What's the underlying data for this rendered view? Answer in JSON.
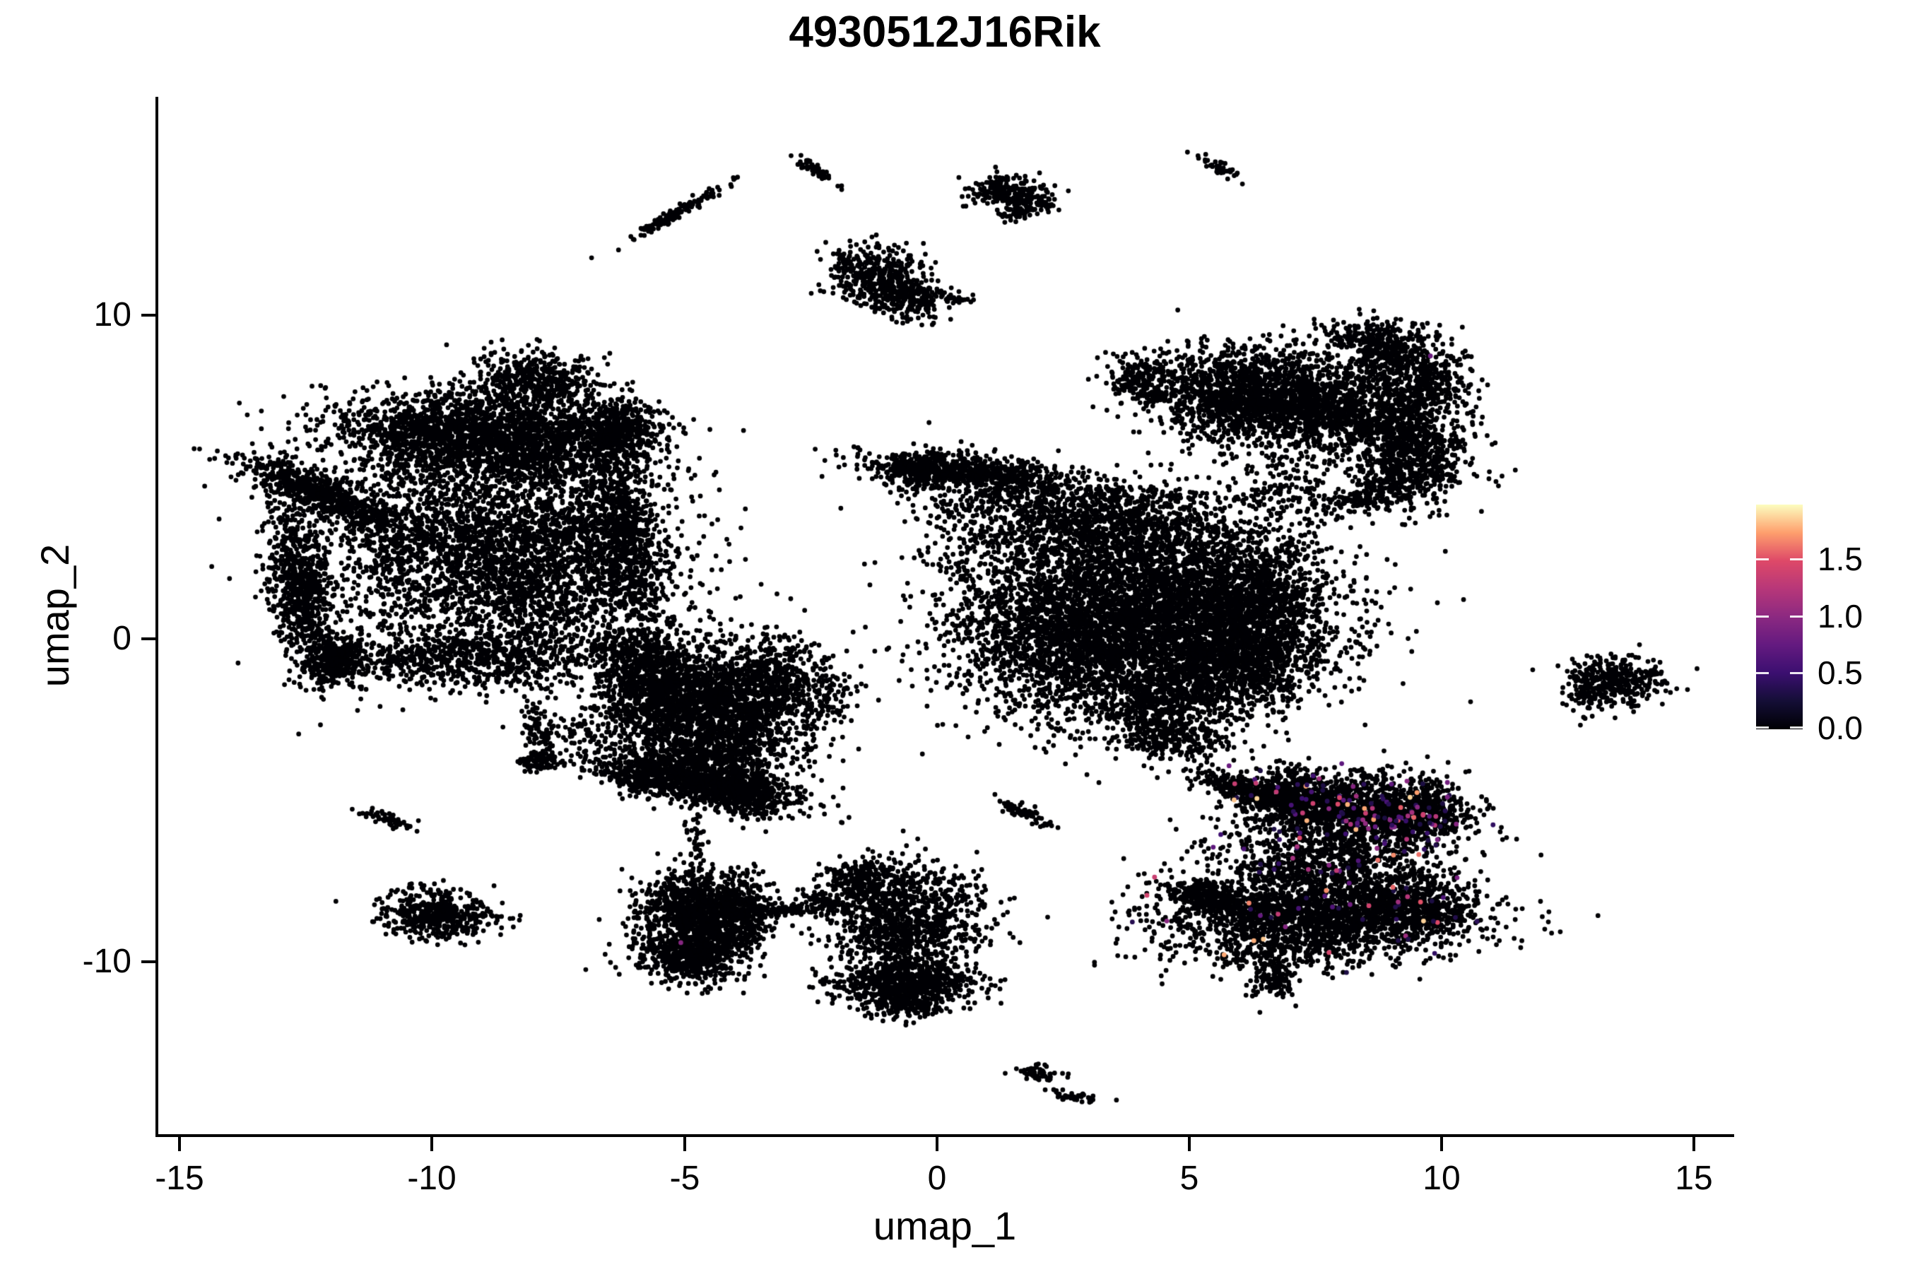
{
  "title": "4930512J16Rik",
  "axes": {
    "x": {
      "label": "umap_1",
      "tick_labels": [
        "-15",
        "-10",
        "-5",
        "0",
        "5",
        "10",
        "15"
      ],
      "tick_values": [
        -15,
        -10,
        -5,
        0,
        5,
        10,
        15
      ]
    },
    "y": {
      "label": "umap_2",
      "tick_labels": [
        "10",
        "0",
        "-10"
      ],
      "tick_values": [
        10,
        0,
        -10
      ]
    }
  },
  "legend": {
    "tick_labels": [
      "1.5",
      "1.0",
      "0.5",
      "0.0"
    ],
    "tick_values": [
      1.5,
      1.0,
      0.5,
      0.0
    ],
    "min_value": 0.0,
    "max_value": 1.98,
    "colormap_name": "magma",
    "colormap_stops": [
      "#000004",
      "#140e36",
      "#3b0f70",
      "#641a80",
      "#8c2981",
      "#b73779",
      "#de4968",
      "#fe9f6d",
      "#fcfdbf"
    ]
  },
  "chart_data": {
    "type": "scatter",
    "title": "4930512J16Rik",
    "xlabel": "umap_1",
    "ylabel": "umap_2",
    "x_domain": [
      -15.45,
      15.77
    ],
    "y_domain": [
      -15.32,
      16.74
    ],
    "x_tick_values": [
      -15,
      -10,
      -5,
      0,
      5,
      10,
      15
    ],
    "y_tick_values": [
      10,
      0,
      -10
    ],
    "grid": false,
    "legend_position": "right",
    "point_radius_px": 3.4,
    "zero_expression_color": "#000004",
    "seed": 42,
    "cluster_fields": [
      "name",
      "center_x",
      "center_y",
      "sd_x",
      "sd_y",
      "rot_deg",
      "n_points",
      "colored_fraction"
    ],
    "clusters": [
      [
        "left-top-band",
        -9.0,
        6.2,
        1.5,
        0.65,
        -8,
        2200,
        0
      ],
      [
        "left-top-right",
        -6.4,
        6.5,
        0.5,
        0.5,
        0,
        450,
        0
      ],
      [
        "left-top-knob",
        -8.0,
        7.9,
        0.6,
        0.5,
        0,
        500,
        0
      ],
      [
        "left-rim-diag",
        -12.1,
        4.4,
        1.0,
        0.3,
        -35,
        700,
        0
      ],
      [
        "left-rim-vert",
        -12.6,
        1.5,
        0.3,
        1.3,
        5,
        700,
        0
      ],
      [
        "left-corner-knob",
        -11.9,
        -0.7,
        0.32,
        0.35,
        0,
        300,
        0
      ],
      [
        "left-interior",
        -9.2,
        2.8,
        1.6,
        1.6,
        0,
        2400,
        0
      ],
      [
        "left-interior-right",
        -7.3,
        2.3,
        1.2,
        1.7,
        0,
        1300,
        0
      ],
      [
        "left-right-edge",
        -6.2,
        3.3,
        0.3,
        1.5,
        6,
        600,
        0
      ],
      [
        "left-bottom-edge",
        -9.3,
        -0.6,
        1.5,
        0.45,
        2,
        700,
        0
      ],
      [
        "left-mid-bridge",
        -5.9,
        -0.6,
        0.5,
        0.7,
        -20,
        300,
        0
      ],
      [
        "left-tail-strand",
        -7.85,
        -2.9,
        0.18,
        0.5,
        10,
        90,
        0
      ],
      [
        "left-tail-blob",
        -7.9,
        -3.8,
        0.22,
        0.18,
        0,
        80,
        0
      ],
      [
        "left-tail-scatter",
        -7.0,
        -3.0,
        0.4,
        0.4,
        0,
        60,
        0
      ],
      [
        "mid-core",
        -4.5,
        -1.9,
        0.95,
        0.85,
        -10,
        1600,
        0
      ],
      [
        "mid-left-edge",
        -5.7,
        -1.6,
        0.4,
        0.8,
        0,
        420,
        0
      ],
      [
        "mid-right",
        -3.3,
        -1.3,
        0.6,
        0.7,
        0,
        450,
        0
      ],
      [
        "mid-bottom",
        -4.3,
        -3.3,
        0.9,
        0.45,
        0,
        420,
        0
      ],
      [
        "mid-right-dots",
        -2.2,
        -1.8,
        0.35,
        0.6,
        0,
        70,
        0
      ],
      [
        "hook-arc",
        -4.6,
        -4.5,
        1.05,
        0.3,
        -18,
        850,
        0
      ],
      [
        "hook-knob",
        -3.75,
        -4.7,
        0.32,
        0.38,
        0,
        280,
        0
      ],
      [
        "hook-fill",
        -5.0,
        -3.9,
        0.75,
        0.45,
        0,
        320,
        0
      ],
      [
        "hook-left-tip",
        -5.8,
        -4.2,
        0.3,
        0.35,
        0,
        150,
        0
      ],
      [
        "strand-arc-topleft",
        -5.2,
        13.1,
        0.65,
        0.07,
        42,
        130,
        0
      ],
      [
        "dash-top-mid",
        -2.37,
        14.45,
        0.3,
        0.07,
        -45,
        45,
        0
      ],
      [
        "ring-blob-a",
        1.2,
        13.85,
        0.28,
        0.3,
        0,
        140,
        0
      ],
      [
        "ring-blob-b",
        1.8,
        13.6,
        0.28,
        0.25,
        0,
        130,
        0
      ],
      [
        "ring-blob-c",
        1.5,
        13.15,
        0.15,
        0.1,
        0,
        30,
        0
      ],
      [
        "dash-top-right",
        5.55,
        14.6,
        0.3,
        0.08,
        -40,
        40,
        0
      ],
      [
        "dash-mid-small",
        0.35,
        10.5,
        0.2,
        0.07,
        -10,
        25,
        0
      ],
      [
        "topmid-blob",
        -1.2,
        11.2,
        0.5,
        0.45,
        -35,
        420,
        0
      ],
      [
        "topmid-ext",
        -0.6,
        10.45,
        0.4,
        0.28,
        -30,
        170,
        0
      ],
      [
        "topmid-dash",
        -0.35,
        10.75,
        0.28,
        0.08,
        0,
        50,
        0
      ],
      [
        "pair-blob-a",
        4.05,
        8.0,
        0.3,
        0.28,
        0,
        160,
        0
      ],
      [
        "pair-blob-b",
        4.35,
        7.5,
        0.18,
        0.12,
        0,
        40,
        0
      ],
      [
        "wing",
        0.5,
        5.2,
        1.0,
        0.27,
        -8,
        600,
        0
      ],
      [
        "wing-tip",
        -0.4,
        5.15,
        0.28,
        0.28,
        0,
        150,
        0
      ],
      [
        "right-band",
        3.1,
        3.6,
        1.5,
        0.6,
        -14,
        1100,
        0
      ],
      [
        "dotted-strand-a",
        1.6,
        5.0,
        0.6,
        0.1,
        0,
        60,
        0
      ],
      [
        "dotted-trail",
        3.5,
        4.5,
        1.7,
        0.12,
        -4,
        130,
        0
      ],
      [
        "right-upperleft-sparse",
        0.9,
        3.2,
        0.6,
        0.9,
        0,
        170,
        0
      ],
      [
        "main-core",
        4.3,
        0.8,
        1.75,
        1.5,
        12,
        4800,
        0
      ],
      [
        "main-bottom-rim",
        5.3,
        -1.3,
        1.3,
        0.65,
        25,
        1300,
        0
      ],
      [
        "main-left",
        2.2,
        0.3,
        0.95,
        1.35,
        0,
        900,
        0
      ],
      [
        "main-right-bulge",
        6.2,
        0.8,
        0.65,
        1.1,
        -10,
        700,
        0
      ],
      [
        "main-bottom-tail",
        4.7,
        -3.1,
        0.55,
        0.35,
        -15,
        260,
        0
      ],
      [
        "right-top-sparse",
        7.0,
        4.6,
        0.8,
        0.6,
        0,
        170,
        0
      ],
      [
        "topright-band",
        7.0,
        7.4,
        1.3,
        0.7,
        -16,
        2200,
        0
      ],
      [
        "topright-left-tip",
        5.5,
        7.1,
        0.5,
        0.6,
        0,
        260,
        0
      ],
      [
        "topright-knob",
        8.8,
        9.0,
        0.62,
        0.42,
        -12,
        430,
        0
      ],
      [
        "topright-upper-right",
        9.6,
        7.9,
        0.5,
        0.5,
        0,
        320,
        0
      ],
      [
        "topright-bridge",
        8.9,
        6.5,
        0.5,
        0.4,
        0,
        200,
        0
      ],
      [
        "topright-lower-lobe",
        9.5,
        5.6,
        0.6,
        0.75,
        8,
        620,
        0
      ],
      [
        "topright-arm",
        8.75,
        4.5,
        0.55,
        0.22,
        35,
        190,
        0
      ],
      [
        "far-right-blob",
        13.45,
        -1.25,
        0.5,
        0.33,
        -10,
        320,
        0
      ],
      [
        "far-right-tail",
        12.95,
        -1.8,
        0.2,
        0.3,
        0,
        70,
        0
      ],
      [
        "botright-arm",
        6.05,
        -4.65,
        0.5,
        0.16,
        -28,
        240,
        0
      ],
      [
        "botright-upper-left",
        6.9,
        -4.9,
        0.4,
        0.35,
        0,
        300,
        0.03
      ],
      [
        "botright-upper-lobe",
        8.3,
        -5.3,
        1.1,
        0.55,
        -8,
        1400,
        0.055
      ],
      [
        "botright-curl",
        9.7,
        -5.3,
        0.35,
        0.5,
        0,
        280,
        0.1
      ],
      [
        "botright-midfill",
        7.7,
        -6.85,
        1.2,
        0.6,
        0,
        750,
        0.04
      ],
      [
        "botright-lower-lobe",
        7.5,
        -8.6,
        1.5,
        0.65,
        3,
        1900,
        0.015
      ],
      [
        "botright-lower-right",
        9.6,
        -8.3,
        0.6,
        0.55,
        0,
        450,
        0.03
      ],
      [
        "botright-left-tip",
        5.3,
        -7.95,
        0.55,
        0.22,
        -22,
        260,
        0
      ],
      [
        "botright-bottom-tip",
        6.65,
        -10.4,
        0.22,
        0.33,
        0,
        130,
        0
      ],
      [
        "botright-below-scatter",
        6.9,
        -9.7,
        0.8,
        0.35,
        0,
        140,
        0.01
      ],
      [
        "botmid-upper",
        -0.75,
        -8.1,
        0.8,
        0.6,
        0,
        600,
        0
      ],
      [
        "botmid-mid",
        -0.6,
        -9.2,
        0.75,
        0.45,
        0,
        450,
        0
      ],
      [
        "botmid-dense-band",
        -0.6,
        -10.6,
        0.7,
        0.4,
        0,
        800,
        0
      ],
      [
        "botmid-bottom",
        -0.5,
        -11.3,
        0.35,
        0.2,
        0,
        120,
        0
      ],
      [
        "botmid-knob",
        -1.5,
        -7.4,
        0.3,
        0.25,
        0,
        150,
        0
      ],
      [
        "botleft-strand",
        -4.78,
        -6.6,
        0.1,
        0.75,
        0,
        55,
        0
      ],
      [
        "botleft-upper",
        -4.75,
        -8.2,
        0.6,
        0.5,
        0,
        650,
        0
      ],
      [
        "botleft-lower",
        -4.85,
        -9.7,
        0.55,
        0.5,
        0,
        700,
        0
      ],
      [
        "botleft-mid",
        -4.25,
        -8.8,
        0.5,
        0.45,
        0,
        400,
        0
      ],
      [
        "botleft-right-scatter",
        -3.8,
        -8.2,
        0.4,
        0.45,
        0,
        140,
        0
      ],
      [
        "botleft-hstrand",
        -3.15,
        -8.4,
        0.55,
        0.07,
        0,
        110,
        0
      ],
      [
        "botleft-diag-dash",
        -2.2,
        -8.15,
        0.3,
        0.1,
        -28,
        70,
        0
      ],
      [
        "small-botleft",
        -9.95,
        -8.55,
        0.55,
        0.35,
        -10,
        430,
        0
      ],
      [
        "small-botleft-tail",
        -8.9,
        -8.55,
        0.3,
        0.06,
        0,
        20,
        0
      ],
      [
        "small-botleft-topdots",
        -10.1,
        -7.9,
        0.25,
        0.2,
        0,
        25,
        0
      ],
      [
        "tiny-dash-left",
        -10.85,
        -5.6,
        0.3,
        0.1,
        -25,
        55,
        0
      ],
      [
        "tiny-blob-bottom",
        2.05,
        -13.4,
        0.22,
        0.16,
        0,
        55,
        0
      ],
      [
        "tiny-dash-bottom",
        2.7,
        -14.15,
        0.28,
        0.08,
        -18,
        40,
        0
      ],
      [
        "tiny-dash-center",
        1.75,
        -5.4,
        0.35,
        0.1,
        -35,
        65,
        0
      ]
    ],
    "highlight_points": [
      {
        "x": -5.07,
        "y": -9.4,
        "value": 0.95
      },
      {
        "x": 9.78,
        "y": 8.73,
        "value": 0.8
      }
    ],
    "colored_value_range": [
      0.3,
      1.9
    ]
  }
}
